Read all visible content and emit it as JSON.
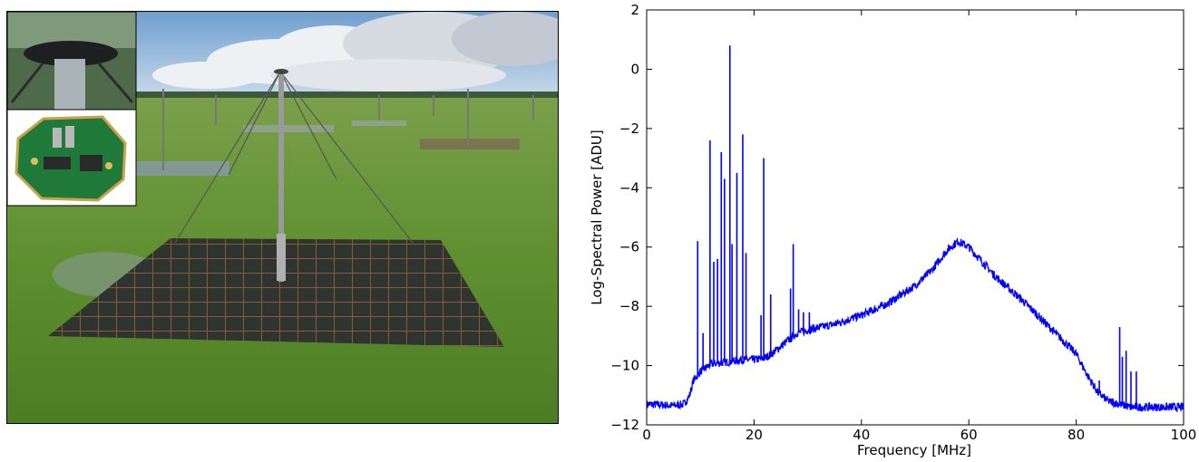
{
  "figure": {
    "left_panel": {
      "photo_subject": "LOFAR low-band antenna on ground-plane mesh in a grassy field",
      "inset_top_subject": "antenna cap",
      "inset_bottom_subject": "low-noise amplifier circuit board"
    }
  },
  "colors": {
    "series": "#0000ff",
    "axes": "#000000",
    "sky": "#aac8e4",
    "grass": "#5f8f2f"
  },
  "chart_data": {
    "type": "line",
    "title": "",
    "xlabel": "Frequency [MHz]",
    "ylabel": "Log-Spectral Power [ADU]",
    "xlim": [
      0,
      100
    ],
    "ylim": [
      -12,
      2
    ],
    "xticks": [
      0,
      20,
      40,
      60,
      80,
      100
    ],
    "xtick_labels": [
      "0",
      "20",
      "40",
      "60",
      "80",
      "100"
    ],
    "yticks": [
      -12,
      -10,
      -8,
      -6,
      -4,
      -2,
      0,
      2
    ],
    "ytick_labels": [
      "−12",
      "−10",
      "−8",
      "−6",
      "−4",
      "−2",
      "0",
      "2"
    ],
    "grid": false,
    "legend": "none",
    "series": [
      {
        "color": "#0000ff",
        "baseline": [
          [
            0,
            -11.3
          ],
          [
            5,
            -11.35
          ],
          [
            7,
            -11.3
          ],
          [
            8,
            -11.0
          ],
          [
            8.7,
            -10.5
          ],
          [
            10,
            -10.2
          ],
          [
            12,
            -9.95
          ],
          [
            14,
            -9.9
          ],
          [
            16,
            -9.85
          ],
          [
            18,
            -9.8
          ],
          [
            20,
            -9.8
          ],
          [
            22,
            -9.75
          ],
          [
            24,
            -9.5
          ],
          [
            26,
            -9.2
          ],
          [
            28,
            -8.9
          ],
          [
            30,
            -8.8
          ],
          [
            35,
            -8.6
          ],
          [
            40,
            -8.3
          ],
          [
            45,
            -7.9
          ],
          [
            50,
            -7.3
          ],
          [
            53,
            -6.8
          ],
          [
            56,
            -6.1
          ],
          [
            58,
            -5.8
          ],
          [
            60,
            -6.0
          ],
          [
            62,
            -6.4
          ],
          [
            65,
            -7.0
          ],
          [
            70,
            -7.8
          ],
          [
            75,
            -8.7
          ],
          [
            80,
            -9.6
          ],
          [
            82,
            -10.3
          ],
          [
            84,
            -10.9
          ],
          [
            86,
            -11.2
          ],
          [
            88,
            -11.3
          ],
          [
            90,
            -11.4
          ],
          [
            95,
            -11.4
          ],
          [
            100,
            -11.4
          ]
        ],
        "peaks": [
          [
            9.5,
            -5.8
          ],
          [
            10.5,
            -8.9
          ],
          [
            11.8,
            -2.4
          ],
          [
            12.5,
            -6.5
          ],
          [
            13.2,
            -6.4
          ],
          [
            13.9,
            -2.8
          ],
          [
            14.5,
            -3.7
          ],
          [
            15.5,
            0.8
          ],
          [
            15.9,
            -5.9
          ],
          [
            16.8,
            -3.5
          ],
          [
            17.9,
            -2.2
          ],
          [
            18.5,
            -6.2
          ],
          [
            21.3,
            -8.3
          ],
          [
            21.8,
            -3.0
          ],
          [
            23.1,
            -7.6
          ],
          [
            26.8,
            -7.4
          ],
          [
            27.3,
            -5.9
          ],
          [
            28.3,
            -8.1
          ],
          [
            29.2,
            -8.2
          ],
          [
            30.3,
            -8.2
          ],
          [
            88.1,
            -8.7
          ],
          [
            88.6,
            -9.7
          ],
          [
            89.3,
            -9.5
          ],
          [
            90.2,
            -10.2
          ],
          [
            91.2,
            -10.2
          ],
          [
            84.3,
            -10.5
          ]
        ]
      }
    ]
  }
}
